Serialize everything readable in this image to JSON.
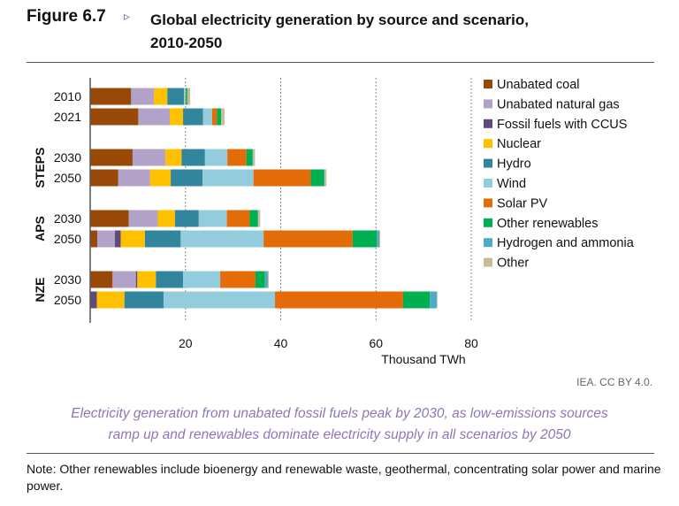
{
  "header": {
    "figure_number": "Figure 6.7",
    "arrow": "▹",
    "title_line1": "Global electricity generation by source and scenario,",
    "title_line2": "2010-2050"
  },
  "credit": "IEA. CC BY 4.0.",
  "caption": {
    "line1": "Electricity generation from unabated fossil fuels peak by 2030, as low-emissions sources",
    "line2": "ramp up and renewables dominate electricity supply in all scenarios by 2050"
  },
  "note": "Note: Other renewables include bioenergy and renewable waste, geothermal, concentrating solar power and marine power.",
  "chart_data": {
    "type": "bar",
    "orientation": "horizontal",
    "stacked": true,
    "title": "Global electricity generation by source and scenario, 2010-2050",
    "xlabel": "Thousand TWh",
    "xlim": [
      0,
      80
    ],
    "xticks": [
      20,
      40,
      60,
      80
    ],
    "grid": "vertical dotted",
    "legend": "right",
    "groups": [
      {
        "name": "",
        "rows": [
          "2010",
          "2021"
        ]
      },
      {
        "name": "STEPS",
        "rows": [
          "2030",
          "2050"
        ]
      },
      {
        "name": "APS",
        "rows": [
          "2030",
          "2050"
        ]
      },
      {
        "name": "NZE",
        "rows": [
          "2030",
          "2050"
        ]
      }
    ],
    "categories": [
      "2010",
      "2021",
      "STEPS 2030",
      "STEPS 2050",
      "APS 2030",
      "APS 2050",
      "NZE 2030",
      "NZE 2050"
    ],
    "series": [
      {
        "name": "Unabated coal",
        "color": "#984807",
        "values": [
          8.6,
          10.1,
          8.9,
          5.9,
          8.1,
          1.5,
          4.7,
          0
        ]
      },
      {
        "name": "Unabated natural gas",
        "color": "#b3a2c7",
        "values": [
          4.8,
          6.6,
          6.9,
          6.7,
          6.1,
          3.7,
          4.9,
          0
        ]
      },
      {
        "name": "Fossil fuels with CCUS",
        "color": "#604a7b",
        "values": [
          0,
          0,
          0,
          0,
          0,
          1.2,
          0.3,
          1.4
        ]
      },
      {
        "name": "Nuclear",
        "color": "#ffc000",
        "values": [
          2.8,
          2.8,
          3.4,
          4.3,
          3.6,
          5.1,
          3.9,
          5.8
        ]
      },
      {
        "name": "Hydro",
        "color": "#31859c",
        "values": [
          3.5,
          4.2,
          4.9,
          6.7,
          5.0,
          7.5,
          5.7,
          8.2
        ]
      },
      {
        "name": "Wind",
        "color": "#93cddd",
        "values": [
          0.3,
          1.9,
          4.7,
          10.7,
          5.9,
          17.4,
          7.8,
          23.4
        ]
      },
      {
        "name": "Solar PV",
        "color": "#e36c09",
        "values": [
          0.1,
          1.0,
          4.0,
          12.0,
          4.8,
          18.7,
          7.4,
          26.9
        ]
      },
      {
        "name": "Other renewables",
        "color": "#00b050",
        "values": [
          0.3,
          0.9,
          1.3,
          2.8,
          1.7,
          5.1,
          2.0,
          5.6
        ]
      },
      {
        "name": "Hydrogen and ammonia",
        "color": "#4bacc6",
        "values": [
          0,
          0,
          0.1,
          0.1,
          0.1,
          0.5,
          0.6,
          1.5
        ]
      },
      {
        "name": "Other",
        "color": "#c4bd97",
        "values": [
          0.6,
          0.7,
          0.4,
          0.4,
          0.4,
          0.2,
          0.2,
          0.1
        ]
      }
    ]
  }
}
